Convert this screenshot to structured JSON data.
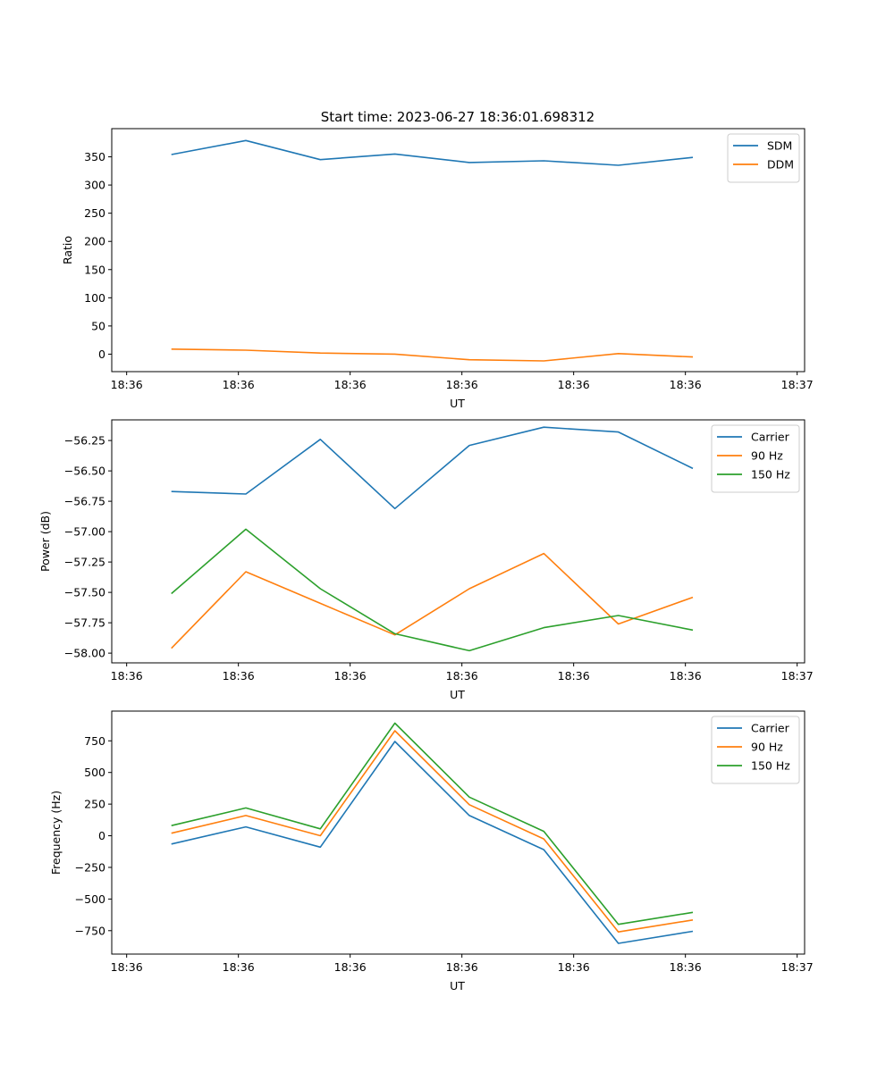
{
  "figure_title": "Start time: 2023-06-27 18:36:01.698312",
  "colors": {
    "blue": "#1f77b4",
    "orange": "#ff7f0e",
    "green": "#2ca02c",
    "axis": "#000000",
    "legend_border": "#cccccc"
  },
  "chart_data": [
    {
      "type": "line",
      "title": "Start time: 2023-06-27 18:36:01.698312",
      "xlabel": "UT",
      "ylabel": "Ratio",
      "x": [
        1,
        2,
        3,
        4,
        5,
        6,
        7,
        8
      ],
      "xlim": [
        0.2,
        9.5
      ],
      "x_ticks": [
        0.4,
        1.9,
        3.4,
        4.9,
        6.4,
        7.9,
        9.4
      ],
      "x_tick_labels": [
        "18:36",
        "18:36",
        "18:36",
        "18:36",
        "18:36",
        "18:36",
        "18:37"
      ],
      "ylim": [
        -31,
        400
      ],
      "y_ticks": [
        0,
        50,
        100,
        150,
        200,
        250,
        300,
        350
      ],
      "y_tick_labels": [
        "0",
        "50",
        "100",
        "150",
        "200",
        "250",
        "300",
        "350"
      ],
      "legend_position": "top-right",
      "grid": false,
      "series": [
        {
          "name": "SDM",
          "color": "#1f77b4",
          "values": [
            354,
            379,
            345,
            355,
            340,
            343,
            335,
            349
          ]
        },
        {
          "name": "DDM",
          "color": "#ff7f0e",
          "values": [
            9,
            7,
            2,
            0,
            -10,
            -12,
            1,
            -5
          ]
        }
      ]
    },
    {
      "type": "line",
      "title": "",
      "xlabel": "UT",
      "ylabel": "Power (dB)",
      "x": [
        1,
        2,
        3,
        4,
        5,
        6,
        7,
        8
      ],
      "xlim": [
        0.2,
        9.5
      ],
      "x_ticks": [
        0.4,
        1.9,
        3.4,
        4.9,
        6.4,
        7.9,
        9.4
      ],
      "x_tick_labels": [
        "18:36",
        "18:36",
        "18:36",
        "18:36",
        "18:36",
        "18:36",
        "18:37"
      ],
      "ylim": [
        -58.08,
        -56.08
      ],
      "y_ticks": [
        -56.25,
        -56.5,
        -56.75,
        -57.0,
        -57.25,
        -57.5,
        -57.75,
        -58.0
      ],
      "y_tick_labels": [
        "−56.25",
        "−56.50",
        "−56.75",
        "−57.00",
        "−57.25",
        "−57.50",
        "−57.75",
        "−58.00"
      ],
      "legend_position": "top-right",
      "grid": false,
      "series": [
        {
          "name": "Carrier",
          "color": "#1f77b4",
          "values": [
            -56.67,
            -56.69,
            -56.24,
            -56.81,
            -56.29,
            -56.14,
            -56.18,
            -56.48
          ]
        },
        {
          "name": "90 Hz",
          "color": "#ff7f0e",
          "values": [
            -57.96,
            -57.33,
            -57.59,
            -57.85,
            -57.47,
            -57.18,
            -57.76,
            -57.54
          ]
        },
        {
          "name": "150 Hz",
          "color": "#2ca02c",
          "values": [
            -57.51,
            -56.98,
            -57.47,
            -57.84,
            -57.98,
            -57.79,
            -57.69,
            -57.81
          ]
        }
      ]
    },
    {
      "type": "line",
      "title": "",
      "xlabel": "UT",
      "ylabel": "Frequency (Hz)",
      "x": [
        1,
        2,
        3,
        4,
        5,
        6,
        7,
        8
      ],
      "xlim": [
        0.2,
        9.5
      ],
      "x_ticks": [
        0.4,
        1.9,
        3.4,
        4.9,
        6.4,
        7.9,
        9.4
      ],
      "x_tick_labels": [
        "18:36",
        "18:36",
        "18:36",
        "18:36",
        "18:36",
        "18:36",
        "18:37"
      ],
      "ylim": [
        -935,
        985
      ],
      "y_ticks": [
        750,
        500,
        250,
        0,
        -250,
        -500,
        -750
      ],
      "y_tick_labels": [
        "750",
        "500",
        "250",
        "0",
        "−250",
        "−500",
        "−750"
      ],
      "legend_position": "top-right",
      "grid": false,
      "series": [
        {
          "name": "Carrier",
          "color": "#1f77b4",
          "values": [
            -65,
            70,
            -90,
            745,
            160,
            -110,
            -850,
            -755
          ]
        },
        {
          "name": "90 Hz",
          "color": "#ff7f0e",
          "values": [
            20,
            160,
            0,
            830,
            245,
            -25,
            -760,
            -665
          ]
        },
        {
          "name": "150 Hz",
          "color": "#2ca02c",
          "values": [
            80,
            220,
            55,
            890,
            305,
            35,
            -700,
            -605
          ]
        }
      ]
    }
  ]
}
